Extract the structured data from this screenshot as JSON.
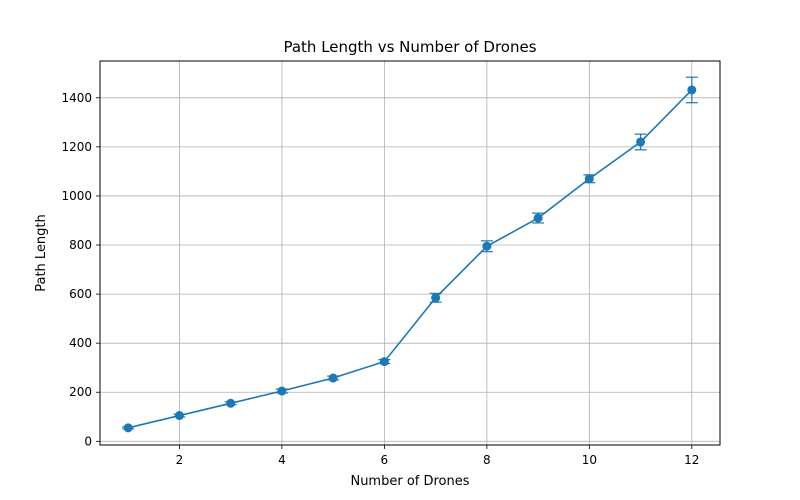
{
  "chart_data": {
    "type": "line",
    "title": "Path Length vs Number of Drones",
    "xlabel": "Number of Drones",
    "ylabel": "Path Length",
    "xlim": [
      0.45,
      12.55
    ],
    "ylim": [
      -15,
      1550
    ],
    "xticks": [
      2,
      4,
      6,
      8,
      10,
      12
    ],
    "yticks": [
      0,
      200,
      400,
      600,
      800,
      1000,
      1200,
      1400
    ],
    "grid": true,
    "color": "#1f77b4",
    "series": [
      {
        "x": [
          1,
          2,
          3,
          4,
          5,
          6,
          7,
          8,
          9,
          10,
          11,
          12
        ],
        "y": [
          55,
          105,
          155,
          205,
          258,
          325,
          585,
          795,
          910,
          1070,
          1220,
          1432
        ],
        "err": [
          4,
          6,
          6,
          8,
          8,
          8,
          18,
          22,
          20,
          16,
          32,
          52
        ]
      }
    ]
  }
}
